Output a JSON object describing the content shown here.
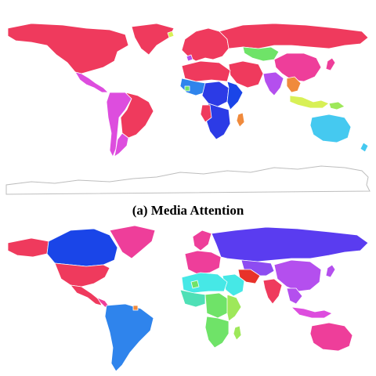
{
  "caption_a": "(a) Media Attention",
  "colors": {
    "red": "#ef3a5d",
    "pink": "#ee3e9a",
    "magenta": "#dd4dde",
    "purple": "#b44fee",
    "violet": "#8d4cf1",
    "indigo": "#5a3cf0",
    "blue": "#2c3be6",
    "royal": "#1a45e8",
    "azure": "#2f84ec",
    "sky": "#45c9f0",
    "cyan": "#46e8e6",
    "teal": "#4fe0b6",
    "green": "#6fe368",
    "lime": "#9ee85a",
    "yellow": "#d8f056",
    "orange": "#f08a3c",
    "scarlet": "#e8322a"
  }
}
